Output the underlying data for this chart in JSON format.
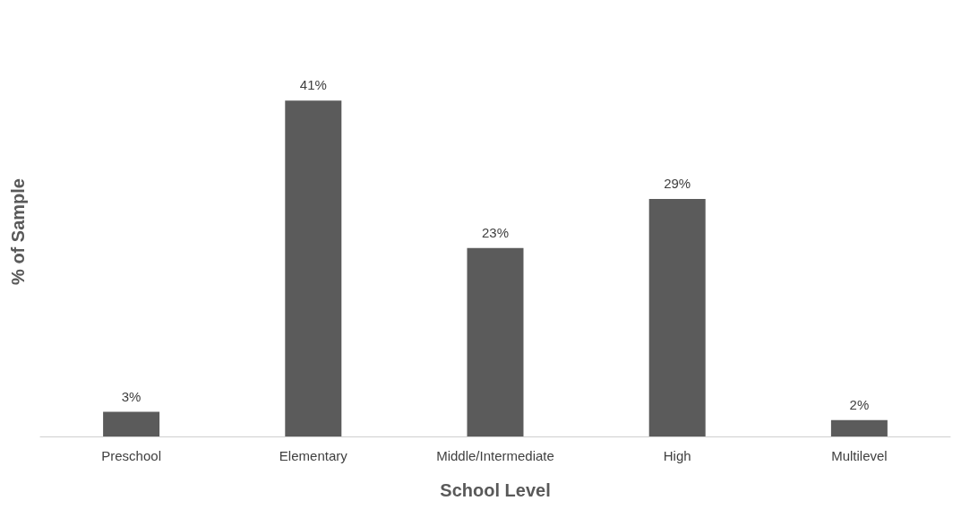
{
  "chart_data": {
    "type": "bar",
    "xlabel": "School Level",
    "ylabel": "% of Sample",
    "categories": [
      "Preschool",
      "Elementary",
      "Middle/Intermediate",
      "High",
      "Multilevel"
    ],
    "values": [
      3,
      41,
      23,
      29,
      2
    ],
    "value_labels": [
      "3%",
      "41%",
      "23%",
      "29%",
      "2%"
    ],
    "color": "#5b5b5b"
  }
}
